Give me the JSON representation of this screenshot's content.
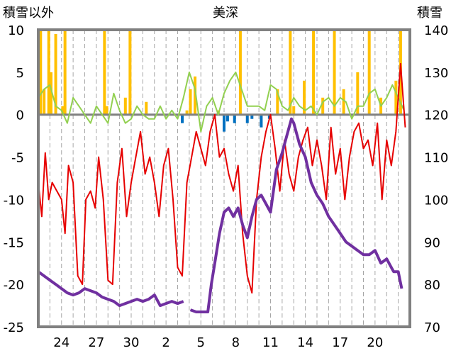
{
  "chart_data": {
    "type": "line",
    "title": "美深",
    "ylabel_left": "積雪以外",
    "ylabel_right": "積雪",
    "y_left": {
      "min": -25,
      "max": 10,
      "ticks": [
        10,
        5,
        0,
        -5,
        -10,
        -15,
        -20,
        -25
      ]
    },
    "y_right": {
      "min": 70,
      "max": 140,
      "ticks": [
        140,
        130,
        120,
        110,
        100,
        90,
        80,
        70
      ]
    },
    "x": {
      "range": [
        22,
        54
      ],
      "tick_days": [
        24,
        27,
        30,
        33,
        36,
        39,
        42,
        45,
        48,
        51
      ],
      "tick_labels": [
        "24",
        "27",
        "30",
        "2",
        "5",
        "8",
        "11",
        "14",
        "17",
        "20"
      ]
    },
    "grid_days": [
      23,
      24,
      25,
      26,
      27,
      28,
      29,
      30,
      31,
      32,
      33,
      34,
      35,
      36,
      37,
      38,
      39,
      40,
      41,
      42,
      43,
      44,
      45,
      46,
      47,
      48,
      49,
      50,
      51,
      52,
      53
    ],
    "zero_line": true,
    "colors": {
      "snow_depth": "#7030a0",
      "temperature": "#e60000",
      "temp_tendency": "#92d050",
      "precip_pos": "#ffc000",
      "precip_neg": "#0070c0",
      "frame": "#808080",
      "grid": "#a6a6a6"
    },
    "series": [
      {
        "key": "temp_tendency",
        "axis": "left",
        "x": [
          22.0,
          22.5,
          23.0,
          23.5,
          24.0,
          24.5,
          25.0,
          25.5,
          26.0,
          26.5,
          27.0,
          27.5,
          28.0,
          28.5,
          29.0,
          29.5,
          30.0,
          30.5,
          31.0,
          31.5,
          32.0,
          32.5,
          33.0,
          33.5,
          34.0,
          34.5,
          35.0,
          35.5,
          36.0,
          36.5,
          37.0,
          37.5,
          38.0,
          38.5,
          39.0,
          39.5,
          40.0,
          40.5,
          41.0,
          41.5,
          42.0,
          42.5,
          43.0,
          43.5,
          44.0,
          44.5,
          45.0,
          45.5,
          46.0,
          46.5,
          47.0,
          47.5,
          48.0,
          48.5,
          49.0,
          49.5,
          50.0,
          50.5,
          51.0,
          51.5,
          52.0,
          52.5,
          53.0,
          53.5
        ],
        "y": [
          2,
          3,
          3.5,
          1,
          0.5,
          -1,
          2,
          1,
          0,
          -1,
          1,
          0,
          -1,
          2.5,
          0.5,
          -1,
          -0.5,
          1,
          0,
          -0.5,
          -0.5,
          1,
          -0.5,
          0.5,
          -0.5,
          2,
          5,
          3,
          -2,
          1,
          2,
          0,
          2.5,
          4,
          5,
          3,
          1,
          1,
          1,
          0.5,
          3.5,
          3,
          1,
          0.5,
          2,
          1,
          0.5,
          1,
          0,
          1.5,
          2,
          1,
          2,
          1.5,
          -0.5,
          1,
          1,
          2.5,
          3,
          1,
          2,
          3.5,
          2,
          0.5
        ]
      },
      {
        "key": "temperature",
        "axis": "left",
        "x": [
          22.0,
          22.3,
          22.6,
          22.9,
          23.2,
          23.6,
          24.0,
          24.3,
          24.6,
          25.0,
          25.4,
          25.8,
          26.1,
          26.5,
          26.9,
          27.2,
          27.6,
          28.0,
          28.4,
          28.8,
          29.2,
          29.6,
          30.0,
          30.4,
          30.8,
          31.2,
          31.6,
          32.0,
          32.4,
          32.8,
          33.2,
          33.6,
          34.0,
          34.4,
          34.8,
          35.2,
          35.6,
          36.0,
          36.4,
          36.8,
          37.2,
          37.6,
          38.0,
          38.4,
          38.8,
          39.2,
          39.6,
          40.0,
          40.4,
          40.8,
          41.2,
          41.6,
          42.0,
          42.4,
          42.8,
          43.2,
          43.6,
          44.0,
          44.4,
          44.8,
          45.2,
          45.6,
          46.0,
          46.4,
          46.8,
          47.2,
          47.6,
          48.0,
          48.4,
          48.8,
          49.2,
          49.6,
          50.0,
          50.4,
          50.8,
          51.2,
          51.6,
          52.0,
          52.4,
          52.8,
          53.2,
          53.6
        ],
        "y": [
          -8,
          -12,
          -4.5,
          -10,
          -8,
          -9,
          -10,
          -14,
          -6,
          -8,
          -19,
          -20,
          -10,
          -9,
          -11,
          -5,
          -10,
          -19.5,
          -20,
          -8,
          -4,
          -12,
          -8,
          -5,
          -2,
          -7,
          -5,
          -8,
          -12,
          -6,
          -4,
          -10,
          -18,
          -19,
          -8,
          -5,
          -2,
          -4,
          -6,
          -2,
          0,
          -5,
          -4,
          -7,
          -9,
          -6,
          -14,
          -19,
          -21,
          -10,
          -5,
          -2,
          0,
          -4,
          -9,
          -3,
          -7,
          -9,
          -5,
          -3,
          -1.5,
          -6,
          -3,
          -6,
          -10,
          -1.5,
          -7,
          -4,
          -10,
          -5,
          -2,
          -1,
          -4,
          -3,
          -6,
          -1,
          -10,
          -3,
          -6,
          -2,
          6,
          -1.5
        ]
      },
      {
        "key": "snow_depth",
        "axis": "right",
        "x": [
          22.0,
          22.5,
          23.0,
          23.5,
          24.0,
          24.5,
          25.0,
          25.5,
          26.0,
          26.5,
          27.0,
          27.5,
          28.0,
          28.5,
          29.0,
          29.5,
          30.0,
          30.5,
          31.0,
          31.5,
          32.0,
          32.5,
          33.0,
          33.5,
          34.0,
          34.5,
          null,
          35.1,
          35.6,
          36.1,
          36.6,
          36.9,
          37.2,
          37.6,
          38.0,
          38.4,
          38.8,
          39.2,
          39.6,
          40.0,
          40.4,
          40.8,
          41.2,
          41.6,
          42.0,
          42.5,
          43.0,
          43.4,
          43.8,
          44.0,
          44.5,
          45.0,
          45.5,
          46.0,
          46.5,
          47.0,
          47.5,
          48.0,
          48.5,
          49.0,
          49.5,
          50.0,
          50.5,
          51.0,
          51.5,
          52.0,
          52.4,
          52.6,
          53.0,
          53.3
        ],
        "y": [
          83,
          82,
          81,
          80,
          79,
          78,
          77.5,
          78,
          79,
          78.5,
          78,
          77,
          76.5,
          76,
          75,
          75.5,
          76,
          76.5,
          76,
          76.5,
          77.5,
          75,
          75.5,
          76,
          75.5,
          76,
          null,
          74,
          73.5,
          73.5,
          73.5,
          80,
          85,
          92,
          97,
          98,
          96,
          98,
          94,
          91,
          96,
          100,
          101,
          99,
          97,
          107,
          111,
          115,
          119,
          118,
          113,
          110,
          104,
          101,
          99,
          96,
          94,
          92,
          90,
          89,
          88,
          87,
          87,
          88,
          85,
          86,
          84,
          83,
          83,
          79
        ]
      }
    ],
    "bars": {
      "x": [
        22.2,
        22.5,
        22.9,
        23.1,
        23.5,
        24.1,
        24.3,
        27.7,
        27.9,
        29.5,
        29.9,
        31.3,
        34.4,
        34.8,
        35.1,
        35.5,
        37.5,
        38.0,
        38.3,
        38.9,
        39.4,
        40.0,
        40.4,
        41.2,
        41.9,
        42.6,
        43.7,
        44.0,
        44.9,
        45.7,
        46.5,
        47.5,
        48.3,
        49.5,
        50.5,
        51.5,
        52.8,
        53.2
      ],
      "y": [
        10,
        3,
        10,
        5,
        9.5,
        1,
        10,
        10,
        1,
        2,
        10,
        1.5,
        -1,
        0.5,
        3,
        4.5,
        0.5,
        -2,
        -0.8,
        -1,
        10,
        -1,
        -0.5,
        -1.5,
        -0.5,
        3,
        10,
        1,
        4,
        10,
        2,
        10,
        3,
        5,
        10,
        2,
        4,
        10
      ]
    }
  }
}
